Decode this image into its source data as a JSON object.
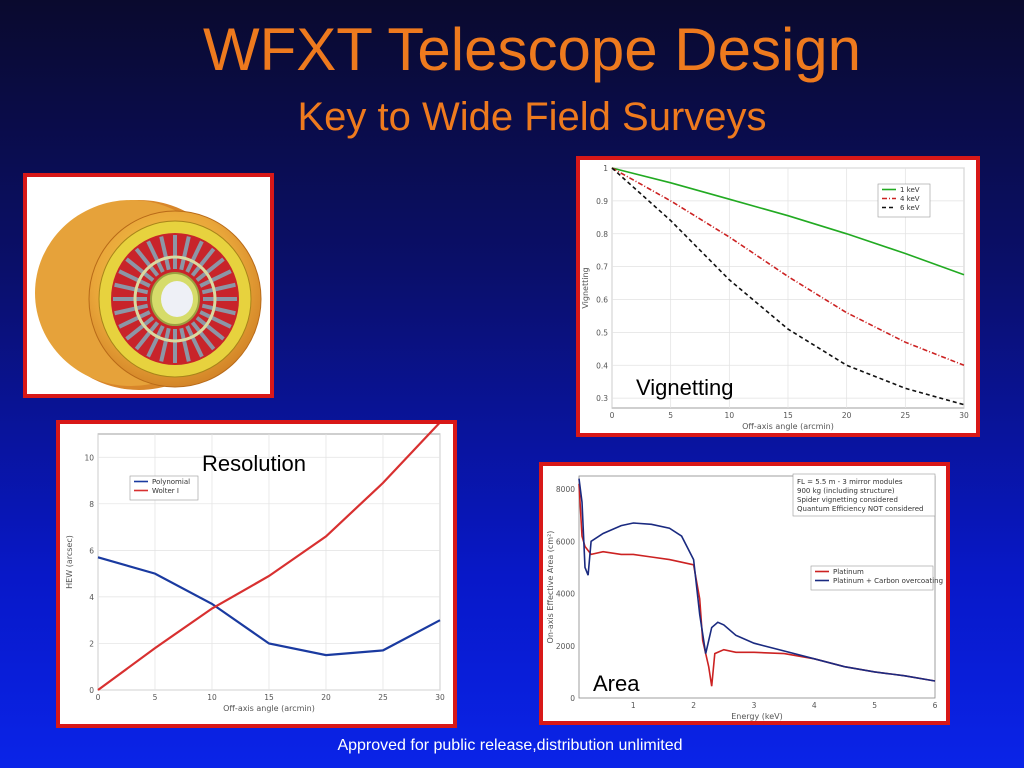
{
  "slide": {
    "title": "WFXT Telescope Design",
    "subtitle": "Key to Wide Field Surveys",
    "footer": "Approved for public release,distribution unlimited"
  },
  "colors": {
    "title": "#ee7a1e",
    "frame": "#d81818"
  },
  "image_panel": {
    "icon": "telescope-mirror-module-render"
  },
  "chart_data": [
    {
      "id": "vignetting",
      "type": "line",
      "caption": "Vignetting",
      "xlabel": "Off-axis angle (arcmin)",
      "ylabel": "Vignetting",
      "xlim": [
        0,
        30
      ],
      "ylim": [
        0.27,
        1.0
      ],
      "xticks": [
        0,
        5,
        10,
        15,
        20,
        25,
        30
      ],
      "yticks": [
        0.3,
        0.4,
        0.5,
        0.6,
        0.7,
        0.8,
        0.9,
        1.0
      ],
      "grid": true,
      "legend": "top-right",
      "x": [
        0,
        5,
        10,
        15,
        20,
        25,
        30
      ],
      "series": [
        {
          "name": "1 keV",
          "color": "#22aa22",
          "dash": "",
          "values": [
            1.0,
            0.955,
            0.905,
            0.855,
            0.8,
            0.74,
            0.675
          ]
        },
        {
          "name": "4 keV",
          "color": "#cc2222",
          "dash": "5,2,1,2",
          "values": [
            1.0,
            0.9,
            0.79,
            0.67,
            0.56,
            0.47,
            0.4
          ]
        },
        {
          "name": "6 keV",
          "color": "#111111",
          "dash": "4,3",
          "values": [
            1.0,
            0.84,
            0.66,
            0.51,
            0.4,
            0.33,
            0.28
          ]
        }
      ]
    },
    {
      "id": "resolution",
      "type": "line",
      "caption": "Resolution",
      "xlabel": "Off-axis angle (arcmin)",
      "ylabel": "HEW (arcsec)",
      "xlim": [
        0,
        30
      ],
      "ylim": [
        0,
        11
      ],
      "xticks": [
        0,
        5,
        10,
        15,
        20,
        25,
        30
      ],
      "yticks": [
        0,
        2,
        4,
        6,
        8,
        10
      ],
      "grid": true,
      "legend": "top-left",
      "x": [
        0,
        5,
        10,
        15,
        20,
        25,
        30
      ],
      "series": [
        {
          "name": "Polynomial",
          "color": "#1a3aa0",
          "dash": "",
          "values": [
            5.7,
            5.0,
            3.7,
            2.0,
            1.5,
            1.7,
            3.0
          ]
        },
        {
          "name": "Wolter I",
          "color": "#d83030",
          "dash": "",
          "values": [
            0.0,
            1.8,
            3.5,
            4.9,
            6.6,
            8.9,
            11.5
          ]
        }
      ]
    },
    {
      "id": "area",
      "type": "line",
      "caption": "Area",
      "xlabel": "Energy (keV)",
      "ylabel": "On-axis Effective Area (cm²)",
      "xlim": [
        0.1,
        6
      ],
      "ylim": [
        0,
        8500
      ],
      "xticks": [
        1,
        2,
        3,
        4,
        5,
        6
      ],
      "yticks": [
        0,
        2000,
        4000,
        6000,
        8000
      ],
      "grid": false,
      "legend": "right",
      "annotation": [
        "FL = 5.5 m - 3 mirror modules",
        "900 kg (including structure)",
        "Spider vignetting considered",
        "Quantum Efficiency NOT considered"
      ],
      "series": [
        {
          "name": "Platinum",
          "color": "#cc2222",
          "dash": "",
          "x": [
            0.1,
            0.15,
            0.2,
            0.3,
            0.5,
            0.8,
            1.0,
            1.3,
            1.6,
            1.8,
            2.0,
            2.1,
            2.15,
            2.25,
            2.3,
            2.35,
            2.5,
            2.7,
            3.0,
            3.5,
            4.0,
            4.5,
            5.0,
            5.5,
            6.0
          ],
          "y": [
            8200,
            6200,
            5800,
            5500,
            5600,
            5500,
            5500,
            5400,
            5300,
            5200,
            5100,
            3800,
            2200,
            1200,
            450,
            1700,
            1850,
            1750,
            1750,
            1700,
            1500,
            1200,
            1000,
            850,
            650
          ]
        },
        {
          "name": "Platinum + Carbon overcoating",
          "color": "#1a2a80",
          "dash": "",
          "x": [
            0.1,
            0.15,
            0.2,
            0.25,
            0.3,
            0.5,
            0.8,
            1.0,
            1.3,
            1.6,
            1.8,
            2.0,
            2.1,
            2.2,
            2.3,
            2.4,
            2.5,
            2.7,
            3.0,
            3.5,
            4.0,
            4.5,
            5.0,
            5.5,
            6.0
          ],
          "y": [
            8400,
            7500,
            5000,
            4700,
            6000,
            6300,
            6600,
            6700,
            6650,
            6500,
            6200,
            5300,
            3200,
            1700,
            2700,
            2900,
            2800,
            2400,
            2100,
            1800,
            1500,
            1200,
            1000,
            850,
            650
          ]
        }
      ]
    }
  ]
}
